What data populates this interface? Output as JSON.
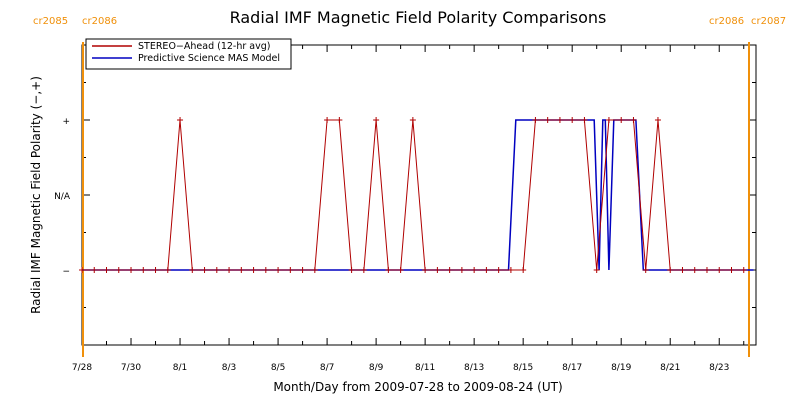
{
  "chart_data": {
    "type": "line",
    "title": "Radial IMF Magnetic Field Polarity Comparisons",
    "xlabel": "Month/Day from 2009-07-28 to 2009-08-24 (UT)",
    "ylabel": "Radial IMF Magnetic Field Polarity (−,+)",
    "carrington_labels": {
      "left": [
        "cr2085",
        "cr2086"
      ],
      "right": [
        "cr2086",
        "cr2087"
      ]
    },
    "carrington_markers_day": [
      0,
      27.3
    ],
    "xlim_days_from_2009_07_28": [
      0,
      27.5
    ],
    "x_tick_labels": [
      "7/28",
      "7/30",
      "8/1",
      "8/3",
      "8/5",
      "8/7",
      "8/9",
      "8/11",
      "8/13",
      "8/15",
      "8/17",
      "8/19",
      "8/21",
      "8/23"
    ],
    "y_categories": [
      "−",
      "N/A",
      "+"
    ],
    "y_values_numeric": [
      -1,
      0,
      1
    ],
    "ylim": [
      -2,
      2
    ],
    "grid": false,
    "legend_position": "top-left",
    "series": [
      {
        "name": "STEREO−Ahead (12-hr avg)",
        "color": "#b00000",
        "marker": "plus",
        "points": [
          [
            0,
            -1
          ],
          [
            0.5,
            -1
          ],
          [
            1,
            -1
          ],
          [
            1.5,
            -1
          ],
          [
            2,
            -1
          ],
          [
            2.5,
            -1
          ],
          [
            3,
            -1
          ],
          [
            3.5,
            -1
          ],
          [
            4,
            1
          ],
          [
            4.5,
            -1
          ],
          [
            5,
            -1
          ],
          [
            5.5,
            -1
          ],
          [
            6,
            -1
          ],
          [
            6.5,
            -1
          ],
          [
            7,
            -1
          ],
          [
            7.5,
            -1
          ],
          [
            8,
            -1
          ],
          [
            8.5,
            -1
          ],
          [
            9,
            -1
          ],
          [
            9.5,
            -1
          ],
          [
            10,
            1
          ],
          [
            10.5,
            1
          ],
          [
            11,
            -1
          ],
          [
            11.5,
            -1
          ],
          [
            12,
            1
          ],
          [
            12.5,
            -1
          ],
          [
            13,
            -1
          ],
          [
            13.5,
            1
          ],
          [
            14,
            -1
          ],
          [
            14.5,
            -1
          ],
          [
            15,
            -1
          ],
          [
            15.5,
            -1
          ],
          [
            16,
            -1
          ],
          [
            16.5,
            -1
          ],
          [
            17,
            -1
          ],
          [
            17.5,
            -1
          ],
          [
            18,
            -1
          ],
          [
            18.5,
            1
          ],
          [
            19,
            1
          ],
          [
            19.5,
            1
          ],
          [
            20,
            1
          ],
          [
            20.5,
            1
          ],
          [
            21,
            -1
          ],
          [
            21.5,
            1
          ],
          [
            22,
            1
          ],
          [
            22.5,
            1
          ],
          [
            23,
            -1
          ],
          [
            23.5,
            1
          ],
          [
            24,
            -1
          ],
          [
            24.5,
            -1
          ],
          [
            25,
            -1
          ],
          [
            25.5,
            -1
          ],
          [
            26,
            -1
          ],
          [
            26.5,
            -1
          ],
          [
            27,
            -1
          ]
        ]
      },
      {
        "name": "Predictive Science MAS Model",
        "color": "#0000c0",
        "points": [
          [
            0,
            -1
          ],
          [
            17.4,
            -1
          ],
          [
            17.7,
            1
          ],
          [
            20.9,
            1
          ],
          [
            21.1,
            -1
          ],
          [
            21.25,
            1
          ],
          [
            21.35,
            1
          ],
          [
            21.5,
            -1
          ],
          [
            21.7,
            1
          ],
          [
            22.6,
            1
          ],
          [
            22.9,
            -1
          ],
          [
            27.4,
            -1
          ]
        ]
      }
    ]
  }
}
